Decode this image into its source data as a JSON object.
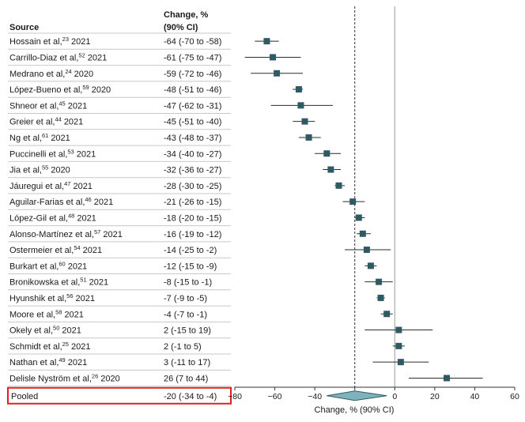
{
  "headers": {
    "source": "Source",
    "change_line1": "Change, %",
    "change_line2": "(90% CI)"
  },
  "chart_data": {
    "type": "forest",
    "xlabel": "Change, % (90% CI)",
    "xlim": [
      -80,
      60
    ],
    "xticks": [
      -80,
      -60,
      -40,
      -20,
      0,
      20,
      40,
      60
    ],
    "null_line": 0,
    "pooled_reference_line": -20,
    "colors": {
      "marker": "#2f5a63",
      "diamond": "#7fb2bd",
      "highlight_border": "#e02020",
      "grid": "#c8c8c8"
    },
    "studies": [
      {
        "name": "Hossain et al,",
        "ref": "23",
        "year": "2021",
        "estimate": -64,
        "ci": [
          -70,
          -58
        ],
        "label": "-64 (-70 to -58)"
      },
      {
        "name": "Carrillo-Diaz et al,",
        "ref": "52",
        "year": "2021",
        "estimate": -61,
        "ci": [
          -75,
          -47
        ],
        "label": "-61 (-75 to -47)"
      },
      {
        "name": "Medrano et al,",
        "ref": "24",
        "year": "2020",
        "estimate": -59,
        "ci": [
          -72,
          -46
        ],
        "label": "-59 (-72 to -46)"
      },
      {
        "name": "López-Bueno et al,",
        "ref": "59",
        "year": "2020",
        "estimate": -48,
        "ci": [
          -51,
          -46
        ],
        "label": "-48 (-51 to -46)"
      },
      {
        "name": "Shneor et al,",
        "ref": "45",
        "year": "2021",
        "estimate": -47,
        "ci": [
          -62,
          -31
        ],
        "label": "-47 (-62 to -31)"
      },
      {
        "name": "Greier et al,",
        "ref": "44",
        "year": "2021",
        "estimate": -45,
        "ci": [
          -51,
          -40
        ],
        "label": "-45 (-51 to -40)"
      },
      {
        "name": "Ng et al,",
        "ref": "61",
        "year": "2021",
        "estimate": -43,
        "ci": [
          -48,
          -37
        ],
        "label": "-43 (-48 to -37)"
      },
      {
        "name": "Puccinelli et al,",
        "ref": "53",
        "year": "2021",
        "estimate": -34,
        "ci": [
          -40,
          -27
        ],
        "label": "-34 (-40 to -27)"
      },
      {
        "name": "Jia et al,",
        "ref": "55",
        "year": "2020",
        "estimate": -32,
        "ci": [
          -36,
          -27
        ],
        "label": "-32 (-36 to -27)"
      },
      {
        "name": "Jáuregui et al,",
        "ref": "47",
        "year": "2021",
        "estimate": -28,
        "ci": [
          -30,
          -25
        ],
        "label": "-28 (-30 to -25)"
      },
      {
        "name": "Aguilar-Farias et al,",
        "ref": "46",
        "year": "2021",
        "estimate": -21,
        "ci": [
          -26,
          -15
        ],
        "label": "-21 (-26 to -15)"
      },
      {
        "name": "López-Gil et al,",
        "ref": "48",
        "year": "2021",
        "estimate": -18,
        "ci": [
          -20,
          -15
        ],
        "label": "-18 (-20 to -15)"
      },
      {
        "name": "Alonso-Martínez et al,",
        "ref": "57",
        "year": "2021",
        "estimate": -16,
        "ci": [
          -19,
          -12
        ],
        "label": "-16 (-19 to -12)"
      },
      {
        "name": "Ostermeier et al,",
        "ref": "54",
        "year": "2021",
        "estimate": -14,
        "ci": [
          -25,
          -2
        ],
        "label": "-14 (-25 to -2)"
      },
      {
        "name": "Burkart et al,",
        "ref": "60",
        "year": "2021",
        "estimate": -12,
        "ci": [
          -15,
          -9
        ],
        "label": "-12 (-15 to -9)"
      },
      {
        "name": "Bronikowska et al,",
        "ref": "51",
        "year": "2021",
        "estimate": -8,
        "ci": [
          -15,
          -1
        ],
        "label": "-8 (-15 to -1)"
      },
      {
        "name": "Hyunshik et al,",
        "ref": "56",
        "year": "2021",
        "estimate": -7,
        "ci": [
          -9,
          -5
        ],
        "label": "-7 (-9 to -5)"
      },
      {
        "name": "Moore et al,",
        "ref": "58",
        "year": "2021",
        "estimate": -4,
        "ci": [
          -7,
          -1
        ],
        "label": "-4 (-7 to -1)"
      },
      {
        "name": "Okely et al,",
        "ref": "50",
        "year": "2021",
        "estimate": 2,
        "ci": [
          -15,
          19
        ],
        "label": "2 (-15 to 19)"
      },
      {
        "name": "Schmidt et al,",
        "ref": "25",
        "year": "2021",
        "estimate": 2,
        "ci": [
          -1,
          5
        ],
        "label": "2 (-1 to 5)"
      },
      {
        "name": "Nathan et al,",
        "ref": "49",
        "year": "2021",
        "estimate": 3,
        "ci": [
          -11,
          17
        ],
        "label": "3 (-11 to 17)"
      },
      {
        "name": "Delisle Nyström et al,",
        "ref": "26",
        "year": "2020",
        "estimate": 26,
        "ci": [
          7,
          44
        ],
        "label": "26 (7 to 44)"
      }
    ],
    "pooled": {
      "name": "Pooled",
      "estimate": -20,
      "ci": [
        -34,
        -4
      ],
      "label": "-20 (-34 to -4)"
    }
  }
}
